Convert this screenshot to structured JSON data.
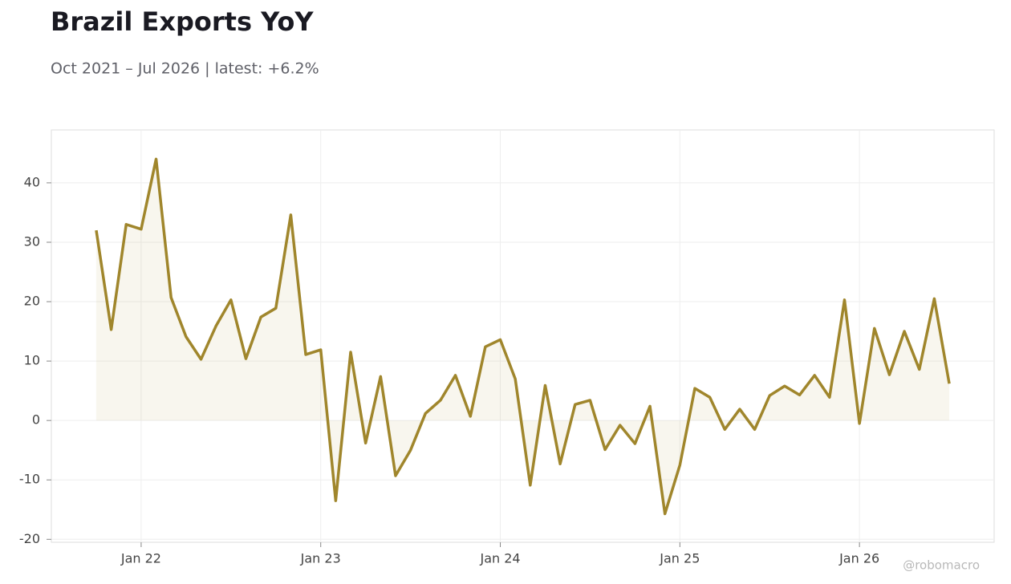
{
  "chart_data": {
    "type": "line",
    "title": "Brazil Exports YoY",
    "subtitle": "Oct 2021 – Jul 2026 | latest: +6.2%",
    "watermark": "@robomacro",
    "x": [
      "2021-10",
      "2021-11",
      "2021-12",
      "2022-01",
      "2022-02",
      "2022-03",
      "2022-04",
      "2022-05",
      "2022-06",
      "2022-07",
      "2022-08",
      "2022-09",
      "2022-10",
      "2022-11",
      "2022-12",
      "2023-01",
      "2023-02",
      "2023-03",
      "2023-04",
      "2023-05",
      "2023-06",
      "2023-07",
      "2023-08",
      "2023-09",
      "2023-10",
      "2023-11",
      "2023-12",
      "2024-01",
      "2024-02",
      "2024-03",
      "2024-04",
      "2024-05",
      "2024-06",
      "2024-07",
      "2024-08",
      "2024-09",
      "2024-10",
      "2024-11",
      "2024-12",
      "2025-01",
      "2025-02",
      "2025-03",
      "2025-04",
      "2025-05",
      "2025-06",
      "2025-07",
      "2025-08",
      "2025-09",
      "2025-10",
      "2025-11",
      "2025-12",
      "2026-01",
      "2026-02",
      "2026-03",
      "2026-04",
      "2026-05",
      "2026-06",
      "2026-07"
    ],
    "series": [
      {
        "name": "Brazil Exports YoY",
        "color": "#a0862c",
        "values": [
          32.0,
          15.3,
          33.0,
          32.2,
          44.0,
          20.7,
          14.1,
          10.3,
          15.9,
          20.3,
          10.4,
          17.4,
          18.9,
          34.6,
          11.1,
          11.9,
          -13.5,
          11.5,
          -3.8,
          7.4,
          -9.3,
          -5.0,
          1.2,
          3.4,
          7.6,
          0.7,
          12.4,
          13.6,
          7.0,
          -10.9,
          5.9,
          -7.3,
          2.7,
          3.4,
          -4.9,
          -0.8,
          -3.9,
          2.4,
          -15.7,
          -7.5,
          5.4,
          3.9,
          -1.5,
          1.9,
          -1.5,
          4.2,
          5.8,
          4.3,
          7.6,
          3.9,
          20.3,
          -0.5,
          15.5,
          7.7,
          15.0,
          8.6,
          20.5,
          6.2
        ]
      }
    ],
    "xlim": [
      "2021-07",
      "2026-10"
    ],
    "xticks": [
      {
        "value": "2022-01",
        "label": "Jan 22"
      },
      {
        "value": "2023-01",
        "label": "Jan 23"
      },
      {
        "value": "2024-01",
        "label": "Jan 24"
      },
      {
        "value": "2025-01",
        "label": "Jan 25"
      },
      {
        "value": "2026-01",
        "label": "Jan 26"
      }
    ],
    "ylim": [
      -20.5,
      48.9
    ],
    "yticks": [
      -20,
      -10,
      0,
      10,
      20,
      30,
      40
    ],
    "grid": true
  }
}
